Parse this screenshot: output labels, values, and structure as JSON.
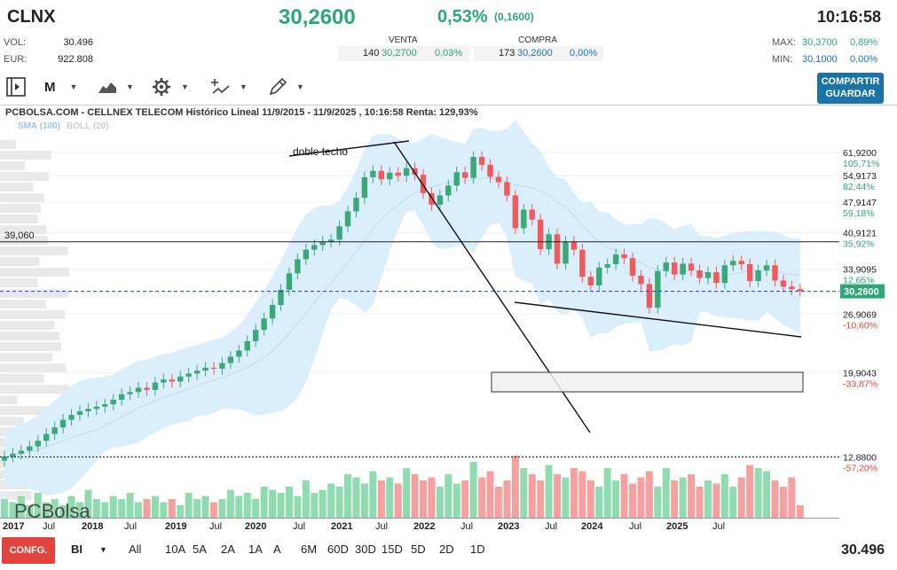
{
  "header": {
    "ticker": "CLNX",
    "price": "30,2600",
    "change_pct": "0,53%",
    "change_abs": "(0,1600)",
    "time": "10:16:58"
  },
  "stats": {
    "vol_label": "VOL:",
    "vol_value": "30.496",
    "eur_label": "EUR:",
    "eur_value": "922.808",
    "max_label": "MAX:",
    "max_value": "30,3700",
    "max_pct": "0,89%",
    "min_label": "MIN:",
    "min_value": "30,1000",
    "min_pct": "0,00%"
  },
  "order_book": {
    "sell_title": "VENTA",
    "sell_qty": "140",
    "sell_price": "30,2700",
    "sell_pct": "0,03%",
    "buy_title": "COMPRA",
    "buy_qty": "173",
    "buy_price": "30,2600",
    "buy_pct": "0,00%"
  },
  "toolbar": {
    "period_label": "M",
    "share_label_1": "COMPARTIR",
    "share_label_2": "GUARDAR"
  },
  "chart_title": "PCBOLSA.COM - CELLNEX TELECOM Histórico Lineal 11/9/2015 - 11/9/2025 , 10:16:58 Renta: 129,93%",
  "legend": {
    "sma": "SMA (100)",
    "boll": "BOLL (20)"
  },
  "watermark": "PCBolsa",
  "chart_data": {
    "type": "candlestick",
    "title": "PCBOLSA.COM - CELLNEX TELECOM Histórico Lineal 11/9/2015 - 11/9/2025 , 10:16:58 Renta: 129,93%",
    "x_tick_labels": [
      "2017",
      "Jul",
      "2018",
      "Jul",
      "2019",
      "Jul",
      "2020",
      "Jul",
      "2021",
      "Jul",
      "2022",
      "Jul",
      "2023",
      "Jul",
      "2024",
      "Jul",
      "2025",
      "Jul"
    ],
    "y_axis": {
      "scale": "log",
      "ylim": [
        11.0,
        66.0
      ],
      "ticks": [
        {
          "value": 61.92,
          "label": "61,9200",
          "pct": "105,71%"
        },
        {
          "value": 54.9173,
          "label": "54,9173",
          "pct": "82,44%"
        },
        {
          "value": 47.9147,
          "label": "47,9147",
          "pct": "59,18%"
        },
        {
          "value": 40.9121,
          "label": "40,9121",
          "pct": "35,92%"
        },
        {
          "value": 33.9095,
          "label": "33,9095",
          "pct": "12,65%"
        },
        {
          "value": 26.9069,
          "label": "26,9069",
          "pct": "-10,60%"
        },
        {
          "value": 19.9043,
          "label": "19,9043",
          "pct": "-33,87%"
        },
        {
          "value": 12.88,
          "label": "12,8800",
          "pct": "-57,20%"
        }
      ]
    },
    "reference_line": {
      "value": 39.06,
      "label": "39,060"
    },
    "last_price": {
      "value": 30.26,
      "label": "30,2600"
    },
    "annotations": [
      {
        "text": "doble techo"
      }
    ],
    "closes": [
      12.9,
      13.1,
      13.3,
      13.6,
      14.0,
      14.5,
      15.0,
      15.6,
      16.0,
      16.3,
      16.5,
      16.7,
      16.9,
      17.3,
      17.8,
      18.0,
      18.4,
      18.2,
      18.9,
      19.2,
      19.0,
      19.5,
      19.8,
      20.1,
      20.4,
      20.3,
      20.9,
      21.6,
      22.3,
      23.4,
      24.8,
      26.3,
      28.2,
      30.5,
      33.2,
      35.7,
      37.5,
      38.4,
      39.1,
      39.5,
      42.3,
      45.7,
      49.0,
      54.5,
      56.3,
      53.9,
      55.8,
      54.9,
      57.1,
      55.2,
      50.2,
      47.3,
      49.6,
      52.2,
      55.9,
      54.3,
      60.5,
      58.1,
      54.6,
      53.1,
      49.6,
      41.9,
      46.1,
      43.8,
      37.6,
      40.6,
      34.9,
      39.1,
      37.5,
      32.6,
      31.2,
      34.2,
      34.8,
      36.6,
      35.9,
      32.8,
      31.4,
      27.8,
      33.6,
      35.1,
      33.0,
      34.9,
      33.7,
      32.4,
      33.4,
      31.6,
      34.6,
      35.4,
      34.8,
      31.9,
      33.7,
      34.6,
      32.0,
      31.0,
      30.6,
      30.3
    ],
    "volumes": [
      0.6,
      0.5,
      0.7,
      0.4,
      0.8,
      0.5,
      0.6,
      0.4,
      0.7,
      0.5,
      0.9,
      0.6,
      0.5,
      0.7,
      0.6,
      0.8,
      0.5,
      0.6,
      0.7,
      0.5,
      0.6,
      0.4,
      0.8,
      0.6,
      0.7,
      0.5,
      0.6,
      0.9,
      0.7,
      0.8,
      0.6,
      1.0,
      0.9,
      0.8,
      1.0,
      0.7,
      1.2,
      0.8,
      0.9,
      1.1,
      1.0,
      1.4,
      1.3,
      1.1,
      1.5,
      1.2,
      1.3,
      1.1,
      1.6,
      1.4,
      1.2,
      1.3,
      1.0,
      1.4,
      1.1,
      1.2,
      1.8,
      1.3,
      1.5,
      1.0,
      1.2,
      2.0,
      1.6,
      1.4,
      1.2,
      1.7,
      1.4,
      1.3,
      1.6,
      1.5,
      1.2,
      1.0,
      1.6,
      1.2,
      1.4,
      1.1,
      1.3,
      1.5,
      1.0,
      1.6,
      1.2,
      1.3,
      1.4,
      1.0,
      1.2,
      1.1,
      1.4,
      1.0,
      1.3,
      1.7,
      1.6,
      1.5,
      1.2,
      1.0,
      1.3,
      0.4
    ]
  },
  "bottom_bar": {
    "config_label": "CONFG.",
    "indicator_label": "BI",
    "ranges": [
      "All",
      "10A",
      "5A",
      "2A",
      "1A",
      "A",
      "6M",
      "60D",
      "30D",
      "15D",
      "5D",
      "2D",
      "1D"
    ],
    "last_volume": "30.496"
  },
  "colors": {
    "up": "#3aa877",
    "down": "#f05a5a",
    "price_green": "#2aa876",
    "boll_fill": "#dbeefb",
    "button_blue": "#1b74a8",
    "config_red": "#e0443a"
  }
}
